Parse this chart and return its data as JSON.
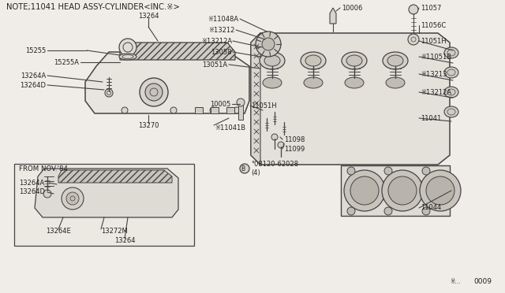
{
  "bg_color": "#f0ede8",
  "line_color": "#444444",
  "text_color": "#222222",
  "title_text": "NOTE;11041 HEAD ASSY-CYLINDER<INC.※>",
  "diagram_id": "0009",
  "labels": {
    "13264_top": "13264",
    "15255": "15255",
    "15255A": "15255A",
    "13264A_left": "13264A",
    "13264D": "13264D",
    "11041B": "※11041B",
    "10005": "10005",
    "13270": "13270",
    "11051H_bot": "11051H",
    "11098": "11098",
    "11099": "11099",
    "bolt_label": "°08120-62028\n(4)",
    "11041": "11041",
    "11044": "11044",
    "13212_top": "※13212",
    "13212A_top": "※13212A",
    "13058": "13058",
    "13051A": "13051A",
    "11048A": "※11048A",
    "10006": "10006",
    "11057": "11057",
    "11056C": "11056C",
    "11051H_top": "11051H",
    "11051B": "※11051B",
    "13213": "※13213",
    "13212A_right": "※13212A",
    "from_nov84": "FROM NOV.'84",
    "13264A_inset": "13264A",
    "13264D_inset": "13264D",
    "13264E": "13264E",
    "13264_inset": "13264",
    "13272M": "13272M"
  }
}
